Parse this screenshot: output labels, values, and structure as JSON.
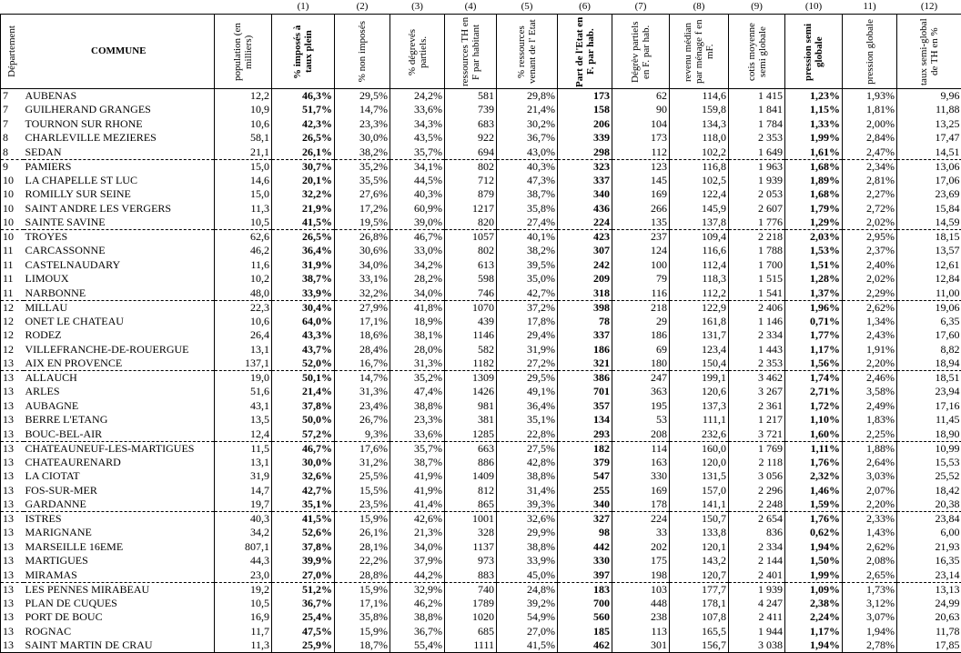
{
  "header": {
    "numbers": [
      "(1)",
      "(2)",
      "(3)",
      "(4)",
      "(5)",
      "(6)",
      "(7)",
      "(8)",
      "(9)",
      "(10)",
      "11)",
      "(12)"
    ],
    "labels": [
      "Département",
      "COMMUNE",
      "population (en milliers)",
      "% imposés à taux plein",
      "% non imposés",
      "% dégrevés partiels.",
      "ressources TH en F par habitant",
      "% ressources venant de l' Etat",
      "Part de l'Etat en F. par hab.",
      "Dégrèv partiels en F. par hab.",
      "revenu médian par ménage f en mF.",
      "cotis moyenne semi globale",
      "pression semi globale",
      "pression globale",
      "taux semi-global de TH en %"
    ]
  },
  "table": {
    "rows": [
      [
        "7",
        "AUBENAS",
        "12,2",
        "46,3%",
        "29,5%",
        "24,2%",
        "581",
        "29,8%",
        "173",
        "62",
        "114,6",
        "1 415",
        "1,23%",
        "1,93%",
        "9,96"
      ],
      [
        "7",
        "GUILHERAND GRANGES",
        "10,9",
        "51,7%",
        "14,7%",
        "33,6%",
        "739",
        "21,4%",
        "158",
        "90",
        "159,8",
        "1 841",
        "1,15%",
        "1,81%",
        "11,88"
      ],
      [
        "7",
        "TOURNON SUR RHONE",
        "10,6",
        "42,3%",
        "23,3%",
        "34,3%",
        "683",
        "30,2%",
        "206",
        "104",
        "134,3",
        "1 784",
        "1,33%",
        "2,00%",
        "13,25"
      ],
      [
        "8",
        "CHARLEVILLE MEZIERES",
        "58,1",
        "26,5%",
        "30,0%",
        "43,5%",
        "922",
        "36,7%",
        "339",
        "173",
        "118,0",
        "2 353",
        "1,99%",
        "2,84%",
        "17,47"
      ],
      [
        "8",
        "SEDAN",
        "21,1",
        "26,1%",
        "38,2%",
        "35,7%",
        "694",
        "43,0%",
        "298",
        "112",
        "102,2",
        "1 649",
        "1,61%",
        "2,47%",
        "14,51"
      ],
      [
        "9",
        "PAMIERS",
        "15,0",
        "30,7%",
        "35,2%",
        "34,1%",
        "802",
        "40,3%",
        "323",
        "123",
        "116,8",
        "1 963",
        "1,68%",
        "2,34%",
        "13,06"
      ],
      [
        "10",
        "LA CHAPELLE ST LUC",
        "14,6",
        "20,1%",
        "35,5%",
        "44,5%",
        "712",
        "47,3%",
        "337",
        "145",
        "102,5",
        "1 939",
        "1,89%",
        "2,81%",
        "17,06"
      ],
      [
        "10",
        "ROMILLY SUR SEINE",
        "15,0",
        "32,2%",
        "27,6%",
        "40,3%",
        "879",
        "38,7%",
        "340",
        "169",
        "122,4",
        "2 053",
        "1,68%",
        "2,27%",
        "23,69"
      ],
      [
        "10",
        "SAINT ANDRE LES VERGERS",
        "11,3",
        "21,9%",
        "17,2%",
        "60,9%",
        "1217",
        "35,8%",
        "436",
        "266",
        "145,9",
        "2 607",
        "1,79%",
        "2,72%",
        "15,84"
      ],
      [
        "10",
        "SAINTE SAVINE",
        "10,5",
        "41,5%",
        "19,5%",
        "39,0%",
        "820",
        "27,4%",
        "224",
        "135",
        "137,8",
        "1 776",
        "1,29%",
        "2,02%",
        "14,59"
      ],
      [
        "10",
        "TROYES",
        "62,6",
        "26,5%",
        "26,8%",
        "46,7%",
        "1057",
        "40,1%",
        "423",
        "237",
        "109,4",
        "2 218",
        "2,03%",
        "2,95%",
        "18,15"
      ],
      [
        "11",
        "CARCASSONNE",
        "46,2",
        "36,4%",
        "30,6%",
        "33,0%",
        "802",
        "38,2%",
        "307",
        "124",
        "116,6",
        "1 788",
        "1,53%",
        "2,37%",
        "13,57"
      ],
      [
        "11",
        "CASTELNAUDARY",
        "11,6",
        "31,9%",
        "34,0%",
        "34,2%",
        "613",
        "39,5%",
        "242",
        "100",
        "112,4",
        "1 700",
        "1,51%",
        "2,40%",
        "12,61"
      ],
      [
        "11",
        "LIMOUX",
        "10,2",
        "38,7%",
        "33,1%",
        "28,2%",
        "598",
        "35,0%",
        "209",
        "79",
        "118,3",
        "1 515",
        "1,28%",
        "2,02%",
        "12,84"
      ],
      [
        "11",
        "NARBONNE",
        "48,0",
        "33,9%",
        "32,2%",
        "34,0%",
        "746",
        "42,7%",
        "318",
        "116",
        "112,2",
        "1 541",
        "1,37%",
        "2,29%",
        "11,00"
      ],
      [
        "12",
        "MILLAU",
        "22,3",
        "30,4%",
        "27,9%",
        "41,8%",
        "1070",
        "37,2%",
        "398",
        "218",
        "122,9",
        "2 406",
        "1,96%",
        "2,62%",
        "19,06"
      ],
      [
        "12",
        "ONET LE CHATEAU",
        "10,6",
        "64,0%",
        "17,1%",
        "18,9%",
        "439",
        "17,8%",
        "78",
        "29",
        "161,8",
        "1 146",
        "0,71%",
        "1,34%",
        "6,35"
      ],
      [
        "12",
        "RODEZ",
        "26,4",
        "43,3%",
        "18,6%",
        "38,1%",
        "1146",
        "29,4%",
        "337",
        "186",
        "131,7",
        "2 334",
        "1,77%",
        "2,43%",
        "17,60"
      ],
      [
        "12",
        "VILLEFRANCHE-DE-ROUERGUE",
        "13,1",
        "43,7%",
        "28,4%",
        "28,0%",
        "582",
        "31,9%",
        "186",
        "69",
        "123,4",
        "1 443",
        "1,17%",
        "1,91%",
        "8,82"
      ],
      [
        "13",
        "AIX EN PROVENCE",
        "137,1",
        "52,0%",
        "16,7%",
        "31,3%",
        "1182",
        "27,2%",
        "321",
        "180",
        "150,4",
        "2 353",
        "1,56%",
        "2,20%",
        "18,94"
      ],
      [
        "13",
        "ALLAUCH",
        "19,0",
        "50,1%",
        "14,7%",
        "35,2%",
        "1309",
        "29,5%",
        "386",
        "247",
        "199,1",
        "3 462",
        "1,74%",
        "2,46%",
        "18,51"
      ],
      [
        "13",
        "ARLES",
        "51,6",
        "21,4%",
        "31,3%",
        "47,4%",
        "1426",
        "49,1%",
        "701",
        "363",
        "120,6",
        "3 267",
        "2,71%",
        "3,58%",
        "23,94"
      ],
      [
        "13",
        "AUBAGNE",
        "43,1",
        "37,8%",
        "23,4%",
        "38,8%",
        "981",
        "36,4%",
        "357",
        "195",
        "137,3",
        "2 361",
        "1,72%",
        "2,49%",
        "17,16"
      ],
      [
        "13",
        "BERRE L'ETANG",
        "13,5",
        "50,0%",
        "26,7%",
        "23,3%",
        "381",
        "35,1%",
        "134",
        "53",
        "111,1",
        "1 217",
        "1,10%",
        "1,83%",
        "11,45"
      ],
      [
        "13",
        "BOUC-BEL-AIR",
        "12,4",
        "57,2%",
        "9,3%",
        "33,6%",
        "1285",
        "22,8%",
        "293",
        "208",
        "232,6",
        "3 721",
        "1,60%",
        "2,25%",
        "18,90"
      ],
      [
        "13",
        "CHATEAUNEUF-LES-MARTIGUES",
        "11,5",
        "46,7%",
        "17,6%",
        "35,7%",
        "663",
        "27,5%",
        "182",
        "114",
        "160,0",
        "1 769",
        "1,11%",
        "1,88%",
        "10,99"
      ],
      [
        "13",
        "CHATEAURENARD",
        "13,1",
        "30,0%",
        "31,2%",
        "38,7%",
        "886",
        "42,8%",
        "379",
        "163",
        "120,0",
        "2 118",
        "1,76%",
        "2,64%",
        "15,53"
      ],
      [
        "13",
        "LA CIOTAT",
        "31,9",
        "32,6%",
        "25,5%",
        "41,9%",
        "1409",
        "38,8%",
        "547",
        "330",
        "131,5",
        "3 056",
        "2,32%",
        "3,03%",
        "25,52"
      ],
      [
        "13",
        "FOS-SUR-MER",
        "14,7",
        "42,7%",
        "15,5%",
        "41,9%",
        "812",
        "31,4%",
        "255",
        "169",
        "157,0",
        "2 296",
        "1,46%",
        "2,07%",
        "18,42"
      ],
      [
        "13",
        "GARDANNE",
        "19,7",
        "35,1%",
        "23,5%",
        "41,4%",
        "865",
        "39,3%",
        "340",
        "178",
        "141,1",
        "2 248",
        "1,59%",
        "2,20%",
        "20,38"
      ],
      [
        "13",
        "ISTRES",
        "40,3",
        "41,5%",
        "15,9%",
        "42,6%",
        "1001",
        "32,6%",
        "327",
        "224",
        "150,7",
        "2 654",
        "1,76%",
        "2,33%",
        "23,84"
      ],
      [
        "13",
        "MARIGNANE",
        "34,2",
        "52,6%",
        "26,1%",
        "21,3%",
        "328",
        "29,9%",
        "98",
        "33",
        "133,8",
        "836",
        "0,62%",
        "1,43%",
        "6,00"
      ],
      [
        "13",
        "MARSEILLE 16EME",
        "807,1",
        "37,8%",
        "28,1%",
        "34,0%",
        "1137",
        "38,8%",
        "442",
        "202",
        "120,1",
        "2 334",
        "1,94%",
        "2,62%",
        "21,93"
      ],
      [
        "13",
        "MARTIGUES",
        "44,3",
        "39,9%",
        "22,2%",
        "37,9%",
        "973",
        "33,9%",
        "330",
        "175",
        "143,2",
        "2 144",
        "1,50%",
        "2,08%",
        "16,35"
      ],
      [
        "13",
        "MIRAMAS",
        "23,0",
        "27,0%",
        "28,8%",
        "44,2%",
        "883",
        "45,0%",
        "397",
        "198",
        "120,7",
        "2 401",
        "1,99%",
        "2,65%",
        "23,14"
      ],
      [
        "13",
        "LES PENNES MIRABEAU",
        "19,2",
        "51,2%",
        "15,9%",
        "32,9%",
        "740",
        "24,8%",
        "183",
        "103",
        "177,7",
        "1 939",
        "1,09%",
        "1,73%",
        "13,13"
      ],
      [
        "13",
        "PLAN DE CUQUES",
        "10,5",
        "36,7%",
        "17,1%",
        "46,2%",
        "1789",
        "39,2%",
        "700",
        "448",
        "178,1",
        "4 247",
        "2,38%",
        "3,12%",
        "24,99"
      ],
      [
        "13",
        "PORT DE BOUC",
        "16,9",
        "25,4%",
        "35,8%",
        "38,8%",
        "1020",
        "54,9%",
        "560",
        "238",
        "107,8",
        "2 411",
        "2,24%",
        "3,07%",
        "20,63"
      ],
      [
        "13",
        "ROGNAC",
        "11,7",
        "47,5%",
        "15,9%",
        "36,7%",
        "685",
        "27,0%",
        "185",
        "113",
        "165,5",
        "1 944",
        "1,17%",
        "1,94%",
        "11,78"
      ],
      [
        "13",
        "SAINT MARTIN DE CRAU",
        "11,3",
        "25,9%",
        "18,7%",
        "55,4%",
        "1111",
        "41,5%",
        "462",
        "301",
        "156,7",
        "3 038",
        "1,94%",
        "2,78%",
        "17,85"
      ]
    ]
  }
}
